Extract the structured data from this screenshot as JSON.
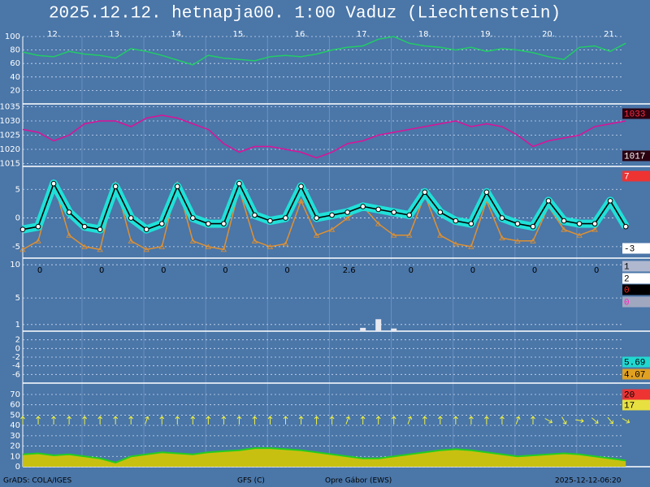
{
  "title": "2025.12.12. hetnapja00. 1:00   Vaduz (Liechtenstein)",
  "footer": [
    "GrADS: COLA/IGES",
    "GFS (C)",
    "Opre Gábor (EWS)",
    "2025-12-12-06:20"
  ],
  "chart_data": [
    {
      "type": "line",
      "categories": [
        null,
        null,
        "12.",
        null,
        null,
        null,
        "13.",
        null,
        null,
        null,
        "14.",
        null,
        null,
        null,
        "15.",
        null,
        null,
        null,
        "16.",
        null,
        null,
        null,
        "17.",
        null,
        null,
        null,
        "18.",
        null,
        null,
        null,
        "19.",
        null,
        null,
        null,
        "20.",
        null,
        null,
        null,
        "21.",
        null
      ],
      "ylim": [
        0,
        100
      ],
      "yticks": [
        100,
        80,
        60,
        40,
        20
      ],
      "grid": true,
      "series": [
        {
          "color": "#22cc66",
          "values": [
            77,
            72,
            70,
            78,
            74,
            72,
            68,
            82,
            78,
            72,
            65,
            58,
            72,
            68,
            66,
            64,
            70,
            72,
            70,
            74,
            80,
            84,
            86,
            96,
            100,
            90,
            86,
            84,
            80,
            84,
            78,
            82,
            80,
            76,
            70,
            66,
            84,
            86,
            78,
            90
          ]
        }
      ]
    },
    {
      "type": "line",
      "ylim": [
        1014,
        1036
      ],
      "yticks": [
        1035,
        1030,
        1025,
        1020,
        1015
      ],
      "grid": true,
      "series": [
        {
          "color": "#dd1199",
          "values": [
            1027,
            1026,
            1023,
            1025,
            1029,
            1030,
            1030,
            1028,
            1031,
            1032,
            1031,
            1029,
            1027,
            1022,
            1019,
            1021,
            1021,
            1020,
            1019,
            1017,
            1019,
            1022,
            1023,
            1025,
            1026,
            1027,
            1028,
            1029,
            1030,
            1028,
            1029,
            1028,
            1025,
            1021,
            1023,
            1024,
            1025,
            1028,
            1029,
            1030
          ]
        }
      ],
      "side_labels": [
        1033,
        1017
      ],
      "side_label_bg": [
        "#2a0010",
        "#2a0010"
      ],
      "side_label_fg": [
        "#ff3040",
        "#ffffff"
      ]
    },
    {
      "type": "line",
      "ylim": [
        -7,
        9
      ],
      "yticks": [
        5,
        0,
        -5
      ],
      "grid": true,
      "series": [
        {
          "color": "#e09030",
          "values": [
            -5.5,
            -4,
            6,
            -3,
            -5,
            -5.5,
            6,
            -4,
            -5.5,
            -5,
            6,
            -4,
            -5,
            -5.5,
            5,
            -4,
            -5,
            -4.5,
            3,
            -3,
            -2,
            0,
            2,
            -1,
            -3,
            -3,
            4,
            -3,
            -4.5,
            -5,
            3,
            -3.5,
            -4,
            -4,
            2,
            -2,
            -3,
            -2,
            2,
            -1
          ]
        },
        {
          "color": "#000000",
          "band_color": "#20e0d8",
          "values": [
            -2,
            -1.5,
            6,
            1,
            -1.5,
            -2,
            5.5,
            0,
            -2,
            -1,
            5.5,
            0,
            -1,
            -1,
            6,
            0.5,
            -0.5,
            0,
            5.5,
            0,
            0.5,
            1,
            2,
            1.5,
            1,
            0.5,
            4.5,
            1,
            -0.5,
            -1,
            4.5,
            0,
            -1,
            -1.5,
            3,
            -0.5,
            -1,
            -1,
            3,
            -1.5
          ]
        }
      ],
      "side_labels": [
        7,
        -3
      ],
      "side_label_bg": [
        "#ee3333",
        "#ffffff"
      ],
      "side_label_fg": [
        "#ffffff",
        "#000000"
      ]
    },
    {
      "type": "bar",
      "ylim": [
        0,
        11
      ],
      "yticks": [
        10,
        5,
        1
      ],
      "grid": true,
      "color": "#e8e8f0",
      "values": [
        0,
        0,
        0,
        0,
        0,
        0,
        0,
        0,
        0,
        0,
        0,
        0,
        0,
        0,
        0,
        0,
        0,
        0,
        0,
        0,
        0,
        0,
        0.5,
        1.8,
        0.4,
        0,
        0,
        0,
        0,
        0,
        0,
        0,
        0,
        0,
        0,
        0,
        0,
        0,
        0,
        0
      ],
      "daily_totals": [
        0,
        0,
        0,
        0,
        0,
        2.6,
        0,
        0,
        0,
        0
      ],
      "side_labels": [
        1,
        2,
        0,
        0
      ],
      "side_label_bg": [
        "#b0b8d0",
        "#ffffff",
        "#000000",
        "#a0a8c0"
      ],
      "side_label_fg": [
        "#000000",
        "#000000",
        "#ff2020",
        "#ff20c0"
      ]
    },
    {
      "type": "line",
      "ylim": [
        -8,
        4
      ],
      "yticks": [
        2,
        0,
        -2,
        -4,
        -6
      ],
      "grid": true,
      "side_labels": [
        5.69,
        4.07
      ],
      "side_label_bg": [
        "#20d8d0",
        "#e0a020"
      ],
      "side_label_fg": [
        "#000000",
        "#000000"
      ]
    },
    {
      "type": "area",
      "ylim": [
        0,
        81
      ],
      "yticks": [
        70,
        60,
        50,
        40,
        30,
        20,
        10,
        0
      ],
      "grid": true,
      "series": [
        {
          "color": "#22cc22",
          "fill": "#c8c010",
          "values": [
            12,
            13,
            11,
            12,
            10,
            8,
            4,
            10,
            12,
            14,
            13,
            12,
            14,
            15,
            16,
            18,
            18,
            17,
            16,
            14,
            12,
            10,
            8,
            8,
            10,
            12,
            14,
            16,
            17,
            16,
            14,
            12,
            10,
            11,
            12,
            13,
            12,
            10,
            8,
            6
          ]
        }
      ],
      "wind_dir": [
        0,
        0,
        0,
        0,
        0,
        0,
        0,
        0,
        20,
        0,
        0,
        0,
        0,
        0,
        0,
        0,
        0,
        0,
        0,
        0,
        0,
        20,
        0,
        0,
        0,
        20,
        0,
        0,
        0,
        0,
        0,
        0,
        20,
        0,
        120,
        150,
        100,
        130,
        140,
        120
      ],
      "side_labels": [
        20,
        17
      ],
      "side_label_bg": [
        "#ee3333",
        "#e8e040"
      ],
      "side_label_fg": [
        "#000000",
        "#000000"
      ]
    }
  ]
}
